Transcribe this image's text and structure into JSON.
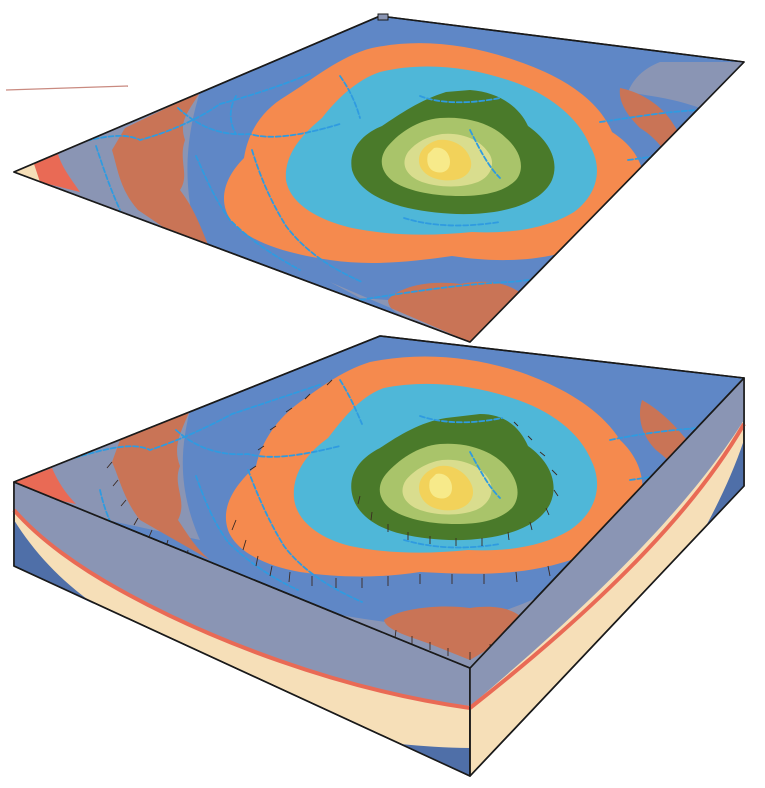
{
  "colors": {
    "background": "#ffffff",
    "blue_gray": "#5f87c6",
    "slate_gray": "#8a95b4",
    "brown": "#c97456",
    "orange": "#f58a4e",
    "cyan": "#4fb7d8",
    "dark_green": "#4a7a2a",
    "light_green": "#a9c46a",
    "pale_green": "#d9dd8e",
    "yellow": "#f2d25a",
    "pale_yellow": "#f7ea8a",
    "river": "#2f9be0",
    "cream": "#f6dfb8",
    "salmon": "#e96a55",
    "dark_blue": "#4f6fa8",
    "outline": "#1a1a1a",
    "leader_line": "#c98a80"
  },
  "panels": [
    {
      "name": "geologic-map-plan-view"
    },
    {
      "name": "block-diagram-3d"
    }
  ]
}
